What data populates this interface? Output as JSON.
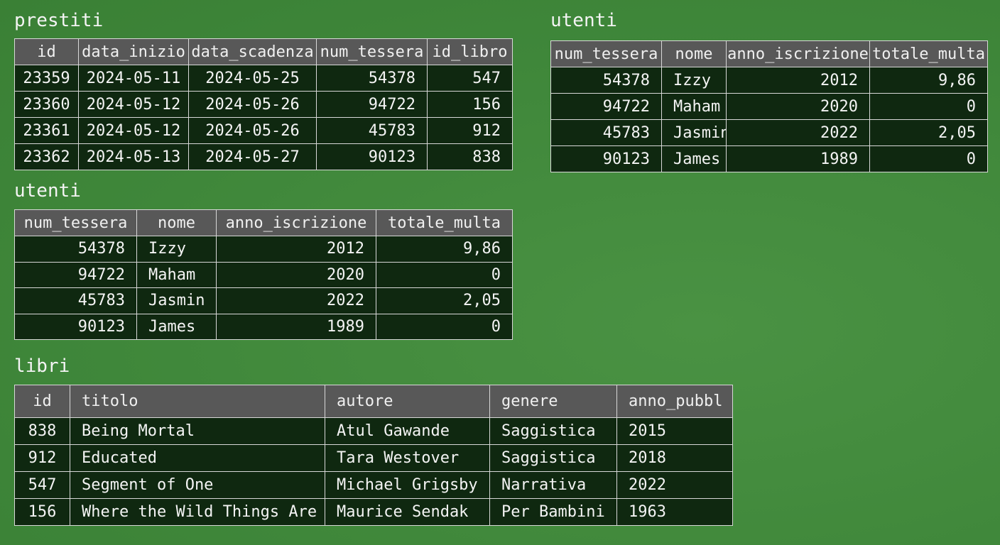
{
  "tables": [
    {
      "title": "prestiti",
      "columns": [
        "id",
        "data_inizio",
        "data_scadenza",
        "num_tessera",
        "id_libro"
      ],
      "rows": [
        [
          23359,
          "2024-05-11",
          "2024-05-25",
          54378,
          547
        ],
        [
          23360,
          "2024-05-12",
          "2024-05-26",
          94722,
          156
        ],
        [
          23361,
          "2024-05-12",
          "2024-05-26",
          45783,
          912
        ],
        [
          23362,
          "2024-05-13",
          "2024-05-27",
          90123,
          838
        ]
      ]
    },
    {
      "title": "utenti",
      "columns": [
        "num_tessera",
        "nome",
        "anno_iscrizione",
        "totale_multa"
      ],
      "rows": [
        [
          54378,
          "Izzy",
          2012,
          "9,86"
        ],
        [
          94722,
          "Maham",
          2020,
          0
        ],
        [
          45783,
          "Jasmin",
          2022,
          "2,05"
        ],
        [
          90123,
          "James",
          1989,
          0
        ]
      ]
    },
    {
      "title": "utenti",
      "columns": [
        "num_tessera",
        "nome",
        "anno_iscrizione",
        "totale_multa"
      ],
      "rows": [
        [
          54378,
          "Izzy",
          2012,
          "9,86"
        ],
        [
          94722,
          "Maham",
          2020,
          0
        ],
        [
          45783,
          "Jasmin",
          2022,
          "2,05"
        ],
        [
          90123,
          "James",
          1989,
          0
        ]
      ]
    },
    {
      "title": "libri",
      "columns": [
        "id",
        "titolo",
        "autore",
        "genere",
        "anno_pubbl"
      ],
      "rows": [
        [
          838,
          "Being Mortal",
          "Atul Gawande",
          "Saggistica",
          2015
        ],
        [
          912,
          "Educated",
          "Tara Westover",
          "Saggistica",
          2018
        ],
        [
          547,
          "Segment of One",
          "Michael Grigsby",
          "Narrativa",
          2022
        ],
        [
          156,
          "Where the Wild Things Are",
          "Maurice Sendak",
          "Per Bambini",
          1963
        ]
      ]
    }
  ]
}
